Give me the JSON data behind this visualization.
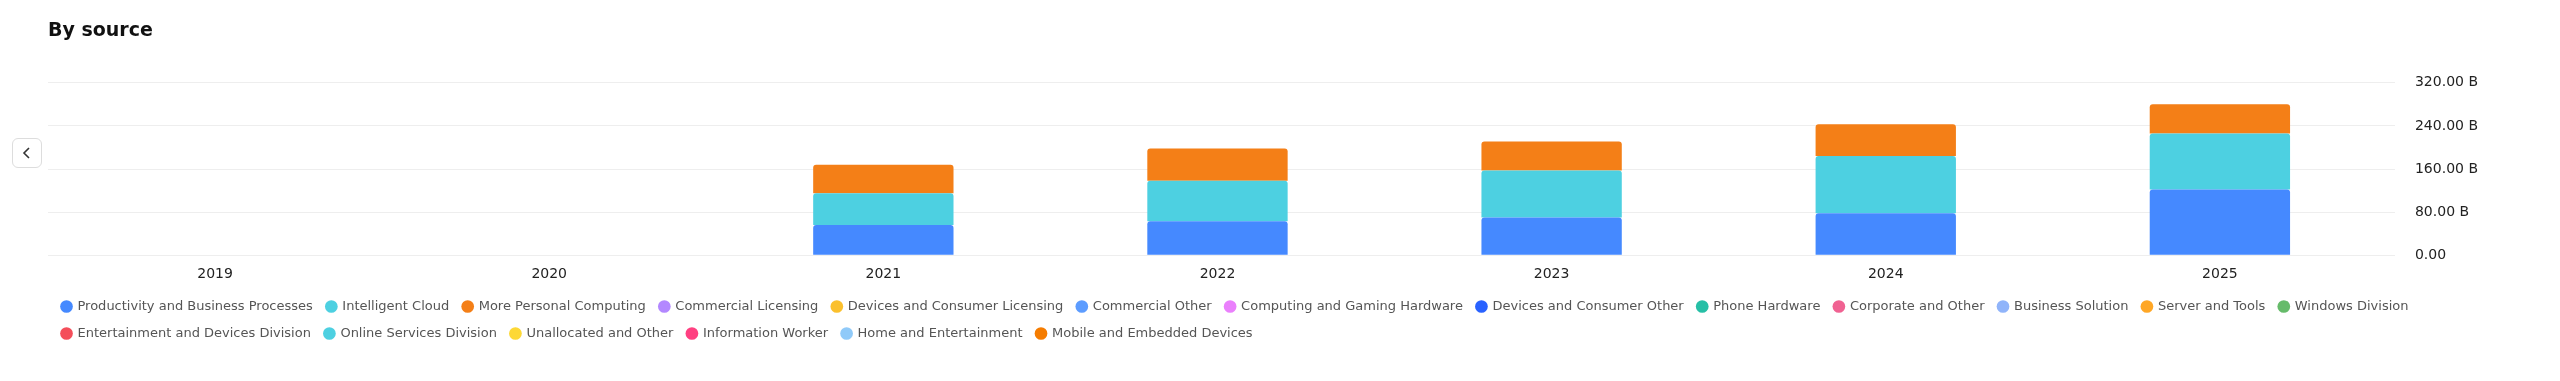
{
  "chart_data": {
    "type": "bar",
    "title": "By source",
    "stacked": true,
    "legend": "bottom",
    "grid": "y",
    "marker": "circle",
    "categories": [
      "2019",
      "2020",
      "2021",
      "2022",
      "2023",
      "2024",
      "2025"
    ],
    "ylim": [
      0,
      320
    ],
    "yticks": [
      {
        "value": 0,
        "label": "0.00"
      },
      {
        "value": 80,
        "label": "80.00 B"
      },
      {
        "value": 160,
        "label": "160.00 B"
      },
      {
        "value": 240,
        "label": "240.00 B"
      },
      {
        "value": 320,
        "label": "320.00 B"
      }
    ],
    "series": [
      {
        "name": "Productivity and Business Processes",
        "color": "#4589ff",
        "values": [
          null,
          null,
          56,
          63,
          70,
          78,
          122
        ]
      },
      {
        "name": "Intelligent Cloud",
        "color": "#4dd0e1",
        "values": [
          null,
          null,
          59,
          75,
          87,
          106,
          104
        ]
      },
      {
        "name": "More Personal Computing",
        "color": "#f47f17",
        "values": [
          null,
          null,
          53,
          60,
          54,
          59,
          54
        ]
      },
      {
        "name": "Commercial Licensing",
        "color": "#b388ff",
        "values": [
          null,
          null,
          null,
          null,
          null,
          null,
          null
        ]
      },
      {
        "name": "Devices and Consumer Licensing",
        "color": "#fbc02d",
        "values": [
          null,
          null,
          null,
          null,
          null,
          null,
          null
        ]
      },
      {
        "name": "Commercial Other",
        "color": "#5c9cff",
        "values": [
          null,
          null,
          null,
          null,
          null,
          null,
          null
        ]
      },
      {
        "name": "Computing and Gaming Hardware",
        "color": "#ea80fc",
        "values": [
          null,
          null,
          null,
          null,
          null,
          null,
          null
        ]
      },
      {
        "name": "Devices and Consumer Other",
        "color": "#2962ff",
        "values": [
          null,
          null,
          null,
          null,
          null,
          null,
          null
        ]
      },
      {
        "name": "Phone Hardware",
        "color": "#26bfa6",
        "values": [
          null,
          null,
          null,
          null,
          null,
          null,
          null
        ]
      },
      {
        "name": "Corporate and Other",
        "color": "#f06292",
        "values": [
          null,
          null,
          null,
          null,
          null,
          null,
          null
        ]
      },
      {
        "name": "Business Solution",
        "color": "#90b4fa",
        "values": [
          null,
          null,
          null,
          null,
          null,
          null,
          null
        ]
      },
      {
        "name": "Server and Tools",
        "color": "#ffa726",
        "values": [
          null,
          null,
          null,
          null,
          null,
          null,
          null
        ]
      },
      {
        "name": "Windows Division",
        "color": "#66bb6a",
        "values": [
          null,
          null,
          null,
          null,
          null,
          null,
          null
        ]
      },
      {
        "name": "Entertainment and Devices Division",
        "color": "#f44e5a",
        "values": [
          null,
          null,
          null,
          null,
          null,
          null,
          null
        ]
      },
      {
        "name": "Online Services Division",
        "color": "#4dd0e1",
        "values": [
          null,
          null,
          null,
          null,
          null,
          null,
          null
        ]
      },
      {
        "name": "Unallocated and Other",
        "color": "#fdd835",
        "values": [
          null,
          null,
          null,
          null,
          null,
          null,
          null
        ]
      },
      {
        "name": "Information Worker",
        "color": "#ff4081",
        "values": [
          null,
          null,
          null,
          null,
          null,
          null,
          null
        ]
      },
      {
        "name": "Home and Entertainment",
        "color": "#90caf9",
        "values": [
          null,
          null,
          null,
          null,
          null,
          null,
          null
        ]
      },
      {
        "name": "Mobile and Embedded Devices",
        "color": "#f57c00",
        "values": [
          null,
          null,
          null,
          null,
          null,
          null,
          null
        ]
      }
    ]
  }
}
